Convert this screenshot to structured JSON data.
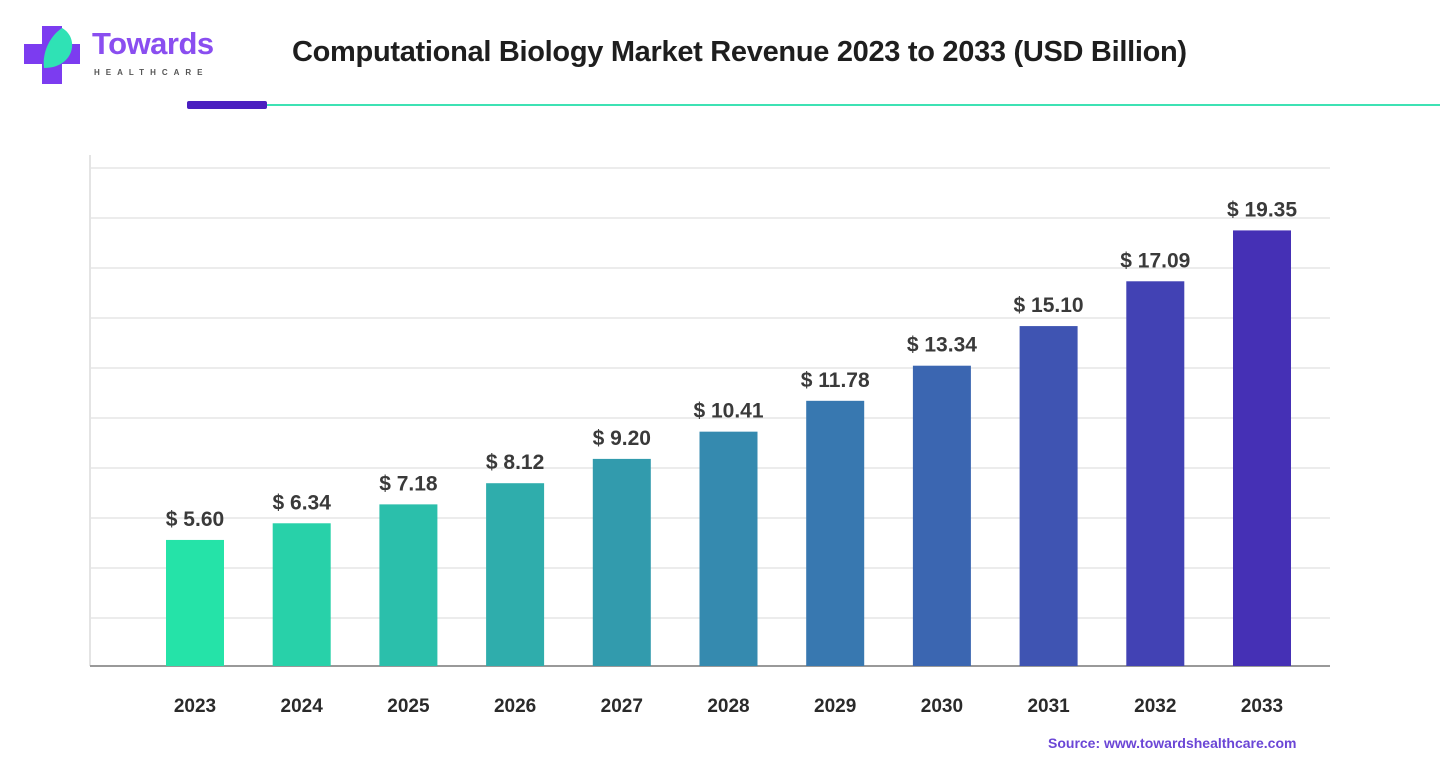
{
  "brand": {
    "name": "Towards",
    "sub": "HEALTHCARE"
  },
  "chart_data": {
    "type": "bar",
    "title": "Computational Biology Market Revenue 2023 to 2033 (USD Billion)",
    "categories": [
      "2023",
      "2024",
      "2025",
      "2026",
      "2027",
      "2028",
      "2029",
      "2030",
      "2031",
      "2032",
      "2033"
    ],
    "values": [
      5.6,
      6.34,
      7.18,
      8.12,
      9.2,
      10.41,
      11.78,
      13.34,
      15.1,
      17.09,
      19.35
    ],
    "data_labels": [
      "$ 5.60",
      "$ 6.34",
      "$ 7.18",
      "$ 8.12",
      "$ 9.20",
      "$ 10.41",
      "$ 11.78",
      "$ 13.34",
      "$ 15.10",
      "$ 17.09",
      "$ 19.35"
    ],
    "xlabel": "",
    "ylabel": "",
    "ylim": [
      0,
      22.7
    ],
    "grid": true,
    "legend": "none",
    "colors": {
      "start": "#25e3a8",
      "end": "#4530b5"
    }
  },
  "source": "Source: www.towardshealthcare.com"
}
